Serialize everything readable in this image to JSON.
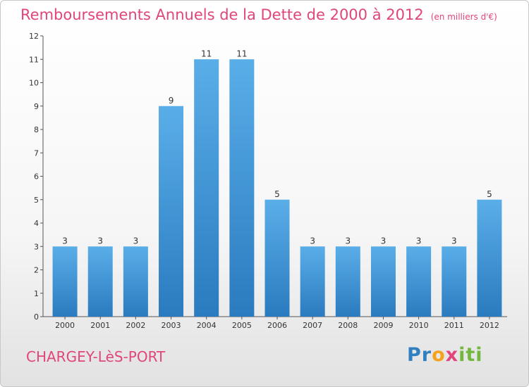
{
  "header": {
    "title": "Remboursements Annuels de la Dette de 2000 à 2012",
    "unit": "(en milliers d'€)"
  },
  "footer": {
    "commune": "CHARGEY-LèS-PORT",
    "logo_parts": [
      "Pr",
      "o",
      "x",
      "iti"
    ]
  },
  "colors": {
    "title": "#e0457b",
    "bar_top": "#5aaee8",
    "bar_bottom": "#2a7bbf"
  },
  "chart_data": {
    "type": "bar",
    "title": "Remboursements Annuels de la Dette de 2000 à 2012",
    "ylabel": "",
    "xlabel": "",
    "categories": [
      "2000",
      "2001",
      "2002",
      "2003",
      "2004",
      "2005",
      "2006",
      "2007",
      "2008",
      "2009",
      "2010",
      "2011",
      "2012"
    ],
    "values": [
      3,
      3,
      3,
      9,
      11,
      11,
      5,
      3,
      3,
      3,
      3,
      3,
      5
    ],
    "ylim": [
      0,
      12
    ],
    "yticks": [
      0,
      1,
      2,
      3,
      4,
      5,
      6,
      7,
      8,
      9,
      10,
      11,
      12
    ],
    "grid": false,
    "legend": "none"
  }
}
